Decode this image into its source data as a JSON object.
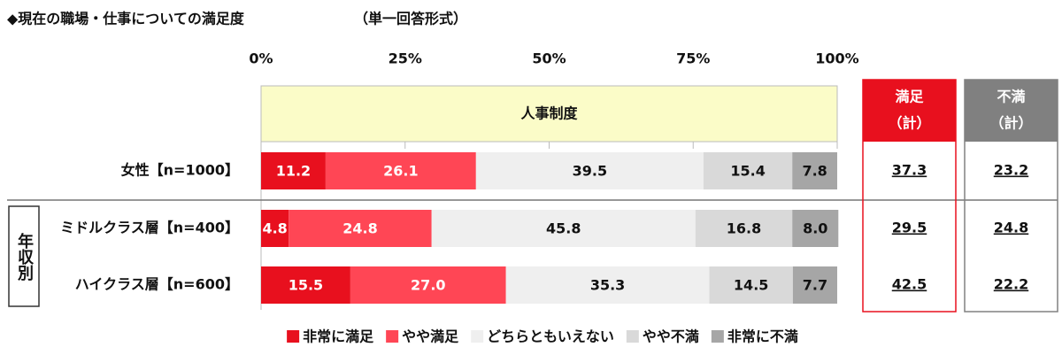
{
  "chart_data": {
    "type": "stacked-bar-horizontal",
    "title": "◆現在の職場・仕事についての満足度",
    "subtitle": "（単一回答形式）",
    "header": "人事制度",
    "categories": [
      "女性【n=1000】",
      "ミドルクラス層【n=400】",
      "ハイクラス層【n=600】"
    ],
    "group_label": "年収別",
    "xlim": [
      0,
      100
    ],
    "xticks": [
      {
        "value": 0,
        "label": "0%"
      },
      {
        "value": 25,
        "label": "25%"
      },
      {
        "value": 50,
        "label": "50%"
      },
      {
        "value": 75,
        "label": "75%"
      },
      {
        "value": 100,
        "label": "100%"
      }
    ],
    "series": [
      {
        "name": "非常に満足",
        "color": "#e8101e",
        "label_color": "#ffffff",
        "values": [
          11.2,
          4.8,
          15.5
        ],
        "value_labels": [
          "11.2",
          "4.8",
          "15.5"
        ]
      },
      {
        "name": "やや満足",
        "color": "#ff4655",
        "label_color": "#ffffff",
        "values": [
          26.1,
          24.8,
          27.0
        ],
        "value_labels": [
          "26.1",
          "24.8",
          "27.0"
        ]
      },
      {
        "name": "どちらともいえない",
        "color": "#efefef",
        "label_color": "#111111",
        "values": [
          39.5,
          45.8,
          35.3
        ],
        "value_labels": [
          "39.5",
          "45.8",
          "35.3"
        ]
      },
      {
        "name": "やや不満",
        "color": "#d9d9d9",
        "label_color": "#111111",
        "values": [
          15.4,
          16.8,
          14.5
        ],
        "value_labels": [
          "15.4",
          "16.8",
          "14.5"
        ]
      },
      {
        "name": "非常に不満",
        "color": "#a6a6a6",
        "label_color": "#111111",
        "values": [
          7.8,
          8.0,
          7.7
        ],
        "value_labels": [
          "7.8",
          "8.0",
          "7.7"
        ]
      }
    ],
    "totals": [
      {
        "label": [
          "満足",
          "（計）"
        ],
        "color": "#e8101e",
        "values": [
          37.3,
          29.5,
          42.5
        ]
      },
      {
        "label": [
          "不満",
          "（計）"
        ],
        "color": "#808080",
        "values": [
          23.2,
          24.8,
          22.2
        ]
      }
    ]
  }
}
